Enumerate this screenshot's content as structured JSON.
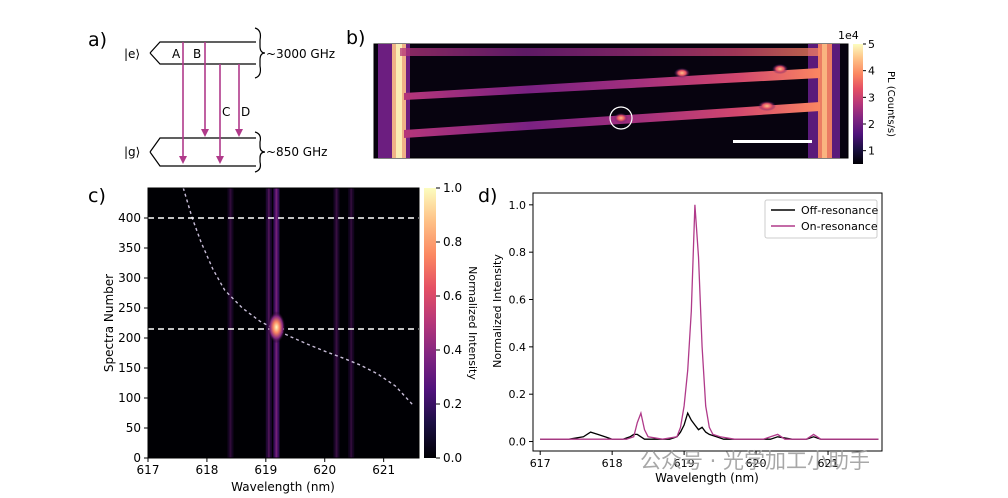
{
  "panel_labels": {
    "a": "a)",
    "b": "b)",
    "c": "c)",
    "d": "d)"
  },
  "watermark": "公众号 · 光学加工小助手",
  "chart_data": [
    {
      "type": "diagram",
      "panel": "a",
      "levels": [
        "|e⟩",
        "|g⟩"
      ],
      "splittings": [
        "~3000 GHz",
        "~850 GHz"
      ],
      "transitions": [
        "A",
        "B",
        "C",
        "D"
      ],
      "colors": {
        "lines": "#000000",
        "arrows": "#b03a8a"
      }
    },
    {
      "type": "heatmap",
      "panel": "b",
      "colorbar": {
        "label": "PL (Counts/s)",
        "multiplier": "1e4",
        "range": [
          0.5,
          5
        ],
        "ticks": [
          1,
          2,
          3,
          4,
          5
        ],
        "colormap": "magma"
      },
      "annotations": [
        "circled emitter",
        "scale bar"
      ]
    },
    {
      "type": "heatmap",
      "panel": "c",
      "xlabel": "Wavelength (nm)",
      "ylabel": "Spectra Number",
      "xlim": [
        617,
        621.6
      ],
      "ylim": [
        0,
        450
      ],
      "xticks": [
        617,
        618,
        619,
        620,
        621
      ],
      "yticks": [
        0,
        50,
        100,
        150,
        200,
        250,
        300,
        350,
        400
      ],
      "hlines": [
        400,
        215
      ],
      "colorbar": {
        "label": "Normalized Intensity",
        "range": [
          0,
          1
        ],
        "ticks": [
          0.0,
          0.2,
          0.4,
          0.6,
          0.8,
          1.0
        ],
        "colormap": "magma"
      },
      "vertical_lines": [
        {
          "wavelength": 618.4,
          "intensity": 0.18
        },
        {
          "wavelength": 619.05,
          "intensity": 0.3
        },
        {
          "wavelength": 619.18,
          "intensity": 0.55
        },
        {
          "wavelength": 620.2,
          "intensity": 0.22
        },
        {
          "wavelength": 620.45,
          "intensity": 0.18
        }
      ],
      "tuning_curve": [
        [
          617.6,
          450
        ],
        [
          617.75,
          400
        ],
        [
          617.9,
          360
        ],
        [
          618.1,
          315
        ],
        [
          618.3,
          280
        ],
        [
          618.6,
          250
        ],
        [
          618.9,
          228
        ],
        [
          619.15,
          215
        ],
        [
          619.4,
          203
        ],
        [
          619.7,
          190
        ],
        [
          620.0,
          178
        ],
        [
          620.3,
          167
        ],
        [
          620.6,
          155
        ],
        [
          620.9,
          140
        ],
        [
          621.2,
          120
        ],
        [
          621.5,
          88
        ]
      ],
      "bright_spot": {
        "wavelength": 619.18,
        "spectra_number": 218
      }
    },
    {
      "type": "line",
      "panel": "d",
      "xlabel": "Wavelength (nm)",
      "ylabel": "Normalized Intensity",
      "xlim": [
        616.9,
        621.75
      ],
      "ylim": [
        -0.04,
        1.05
      ],
      "xticks": [
        617,
        618,
        619,
        620,
        621
      ],
      "yticks": [
        0.0,
        0.2,
        0.4,
        0.6,
        0.8,
        1.0
      ],
      "legend_position": "top-right",
      "series": [
        {
          "name": "Off-resonance",
          "color": "#000000",
          "x": [
            617.0,
            617.4,
            617.6,
            617.7,
            617.8,
            617.9,
            618.0,
            618.15,
            618.25,
            618.3,
            618.35,
            618.4,
            618.45,
            618.5,
            618.6,
            618.8,
            618.9,
            618.95,
            619.0,
            619.05,
            619.1,
            619.15,
            619.2,
            619.25,
            619.3,
            619.35,
            619.45,
            619.55,
            619.7,
            619.9,
            620.1,
            620.2,
            620.3,
            620.5,
            620.7,
            620.8,
            620.9,
            621.1,
            621.3,
            621.5,
            621.7
          ],
          "values": [
            0.01,
            0.01,
            0.02,
            0.04,
            0.03,
            0.02,
            0.01,
            0.01,
            0.02,
            0.03,
            0.03,
            0.02,
            0.01,
            0.01,
            0.01,
            0.01,
            0.02,
            0.04,
            0.07,
            0.12,
            0.09,
            0.07,
            0.05,
            0.06,
            0.04,
            0.03,
            0.02,
            0.01,
            0.01,
            0.01,
            0.01,
            0.01,
            0.02,
            0.01,
            0.01,
            0.02,
            0.01,
            0.01,
            0.01,
            0.01,
            0.01
          ]
        },
        {
          "name": "On-resonance",
          "color": "#b03a8a",
          "x": [
            617.0,
            617.5,
            617.8,
            618.0,
            618.2,
            618.3,
            618.35,
            618.4,
            618.45,
            618.5,
            618.7,
            618.9,
            618.95,
            619.0,
            619.05,
            619.1,
            619.15,
            619.2,
            619.25,
            619.3,
            619.35,
            619.4,
            619.5,
            619.7,
            619.9,
            620.1,
            620.2,
            620.3,
            620.4,
            620.5,
            620.7,
            620.8,
            620.9,
            621.1,
            621.3,
            621.5,
            621.7
          ],
          "values": [
            0.01,
            0.01,
            0.01,
            0.01,
            0.01,
            0.02,
            0.08,
            0.12,
            0.05,
            0.02,
            0.01,
            0.02,
            0.06,
            0.15,
            0.3,
            0.55,
            1.0,
            0.78,
            0.4,
            0.15,
            0.06,
            0.03,
            0.02,
            0.01,
            0.01,
            0.01,
            0.02,
            0.03,
            0.01,
            0.01,
            0.01,
            0.03,
            0.01,
            0.01,
            0.01,
            0.01,
            0.01
          ]
        }
      ]
    }
  ]
}
